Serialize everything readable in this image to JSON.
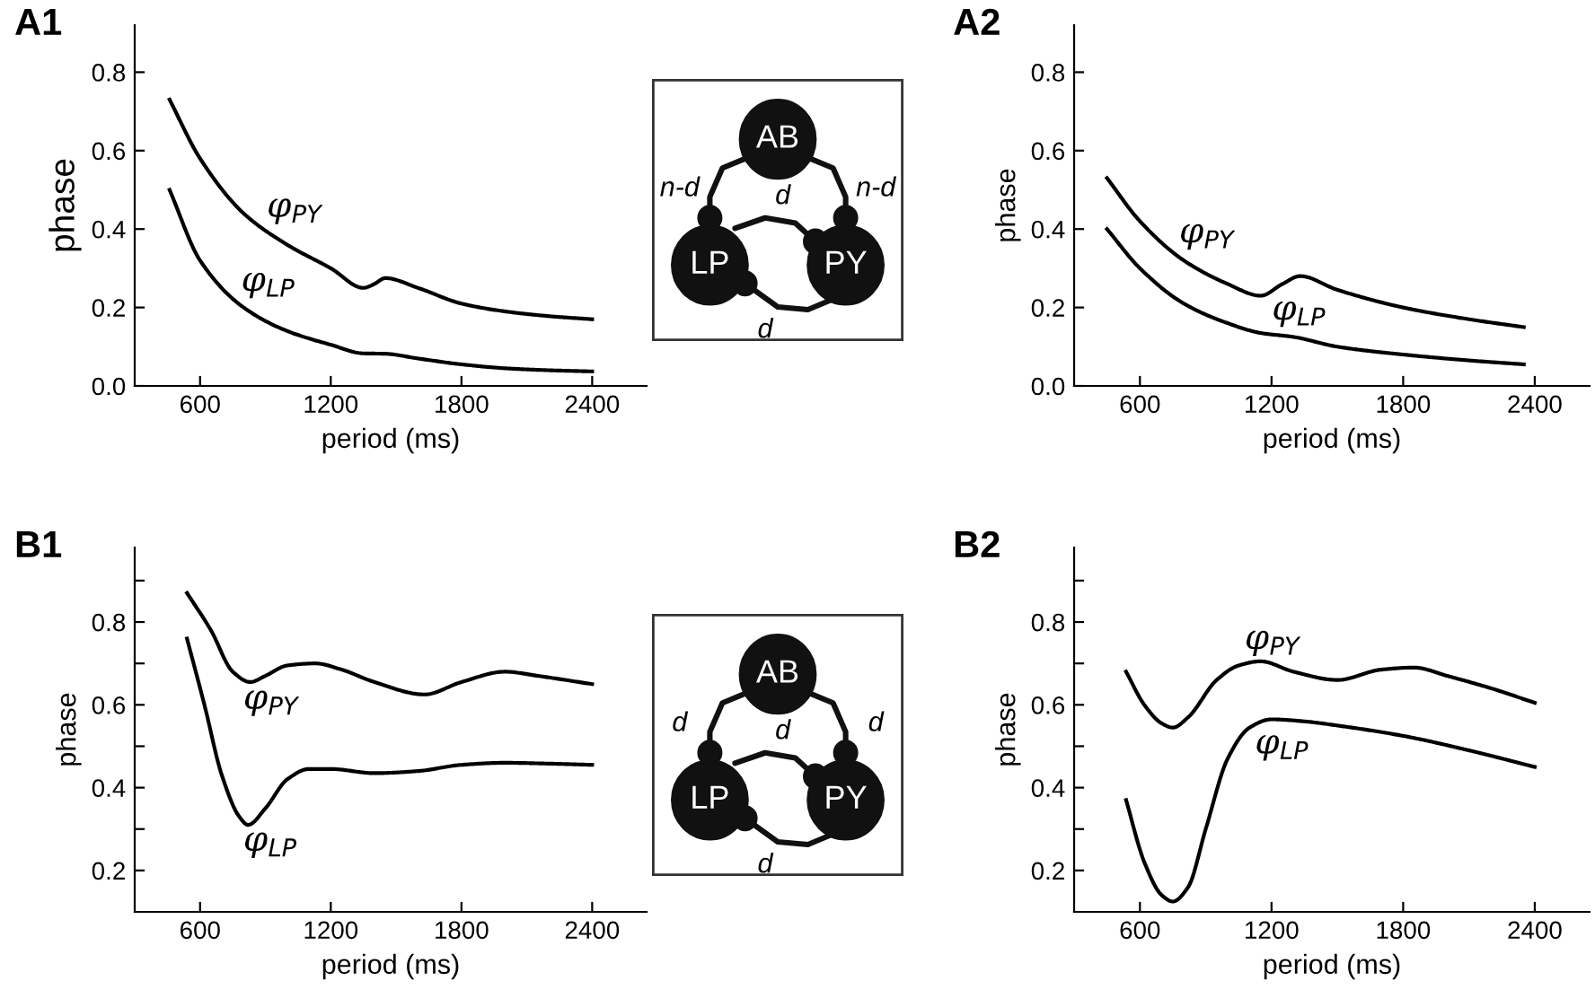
{
  "chart_data": [
    {
      "type": "line",
      "title": "A1",
      "xlabel": "period (ms)",
      "ylabel": "phase",
      "xlim": [
        300,
        2650
      ],
      "xticks": [
        600,
        1200,
        1800,
        2400
      ],
      "ylim": [
        0,
        0.92
      ],
      "yticks": [
        {
          "value": 0,
          "label": "0.0"
        },
        0.2,
        0.4,
        0.6,
        0.8
      ],
      "grid": false,
      "legend": false,
      "series": [
        {
          "name": "φ$_{PY}$",
          "color": "#000000",
          "x": [
            460,
            600,
            800,
            1000,
            1200,
            1350,
            1400,
            1450,
            1600,
            1800,
            2000,
            2200,
            2400
          ],
          "values": [
            0.73,
            0.58,
            0.44,
            0.36,
            0.3,
            0.25,
            0.26,
            0.275,
            0.25,
            0.21,
            0.19,
            0.178,
            0.17
          ]
        },
        {
          "name": "φ$_{LP}$",
          "color": "#000000",
          "x": [
            460,
            600,
            800,
            1000,
            1200,
            1350,
            1450,
            1600,
            1800,
            2000,
            2200,
            2400
          ],
          "values": [
            0.5,
            0.32,
            0.2,
            0.14,
            0.105,
            0.083,
            0.082,
            0.07,
            0.055,
            0.045,
            0.04,
            0.037
          ]
        }
      ]
    },
    {
      "type": "other",
      "annotations": [
        "AB",
        "LP",
        "PY",
        "n-d",
        "n-d",
        "d",
        "d"
      ]
    },
    {
      "type": "line",
      "title": "A2",
      "xlabel": "period (ms)",
      "ylabel": "phase",
      "xlim": [
        300,
        2650
      ],
      "xticks": [
        600,
        1200,
        1800,
        2400
      ],
      "ylim": [
        0,
        0.92
      ],
      "yticks": [
        {
          "value": 0,
          "label": "0.0"
        },
        0.2,
        0.4,
        0.6,
        0.8
      ],
      "grid": false,
      "legend": false,
      "series": [
        {
          "name": "φ$_{PY}$",
          "color": "#000000",
          "x": [
            450,
            600,
            800,
            1000,
            1150,
            1250,
            1330,
            1500,
            1800,
            2100,
            2350
          ],
          "values": [
            0.53,
            0.42,
            0.32,
            0.26,
            0.23,
            0.26,
            0.28,
            0.245,
            0.2,
            0.17,
            0.15
          ]
        },
        {
          "name": "φ$_{LP}$",
          "color": "#000000",
          "x": [
            450,
            600,
            800,
            1000,
            1150,
            1300,
            1500,
            1800,
            2100,
            2350
          ],
          "values": [
            0.4,
            0.3,
            0.21,
            0.16,
            0.135,
            0.125,
            0.1,
            0.08,
            0.065,
            0.055
          ]
        }
      ]
    },
    {
      "type": "line",
      "title": "B1",
      "xlabel": "period (ms)",
      "ylabel": "phase",
      "xlim": [
        300,
        2650
      ],
      "xticks": [
        600,
        1200,
        1800,
        2400
      ],
      "ylim": [
        0.1,
        0.98
      ],
      "yticks": [
        0.2,
        {
          "value": 0.3,
          "label": null
        },
        0.4,
        {
          "value": 0.5,
          "label": null
        },
        0.6,
        {
          "value": 0.7,
          "label": null
        },
        0.8,
        {
          "value": 0.9,
          "label": null
        }
      ],
      "grid": false,
      "legend": false,
      "series": [
        {
          "name": "φ$_{PY}$",
          "color": "#000000",
          "x": [
            540,
            650,
            750,
            830,
            900,
            1000,
            1130,
            1250,
            1400,
            1630,
            1800,
            2000,
            2150,
            2400
          ],
          "values": [
            0.87,
            0.78,
            0.68,
            0.655,
            0.67,
            0.695,
            0.7,
            0.685,
            0.655,
            0.625,
            0.655,
            0.68,
            0.67,
            0.65
          ]
        },
        {
          "name": "φ$_{LP}$",
          "color": "#000000",
          "x": [
            540,
            620,
            700,
            780,
            820,
            900,
            1000,
            1100,
            1200,
            1400,
            1600,
            1800,
            2000,
            2200,
            2400
          ],
          "values": [
            0.76,
            0.6,
            0.43,
            0.33,
            0.31,
            0.35,
            0.42,
            0.445,
            0.445,
            0.435,
            0.44,
            0.455,
            0.46,
            0.458,
            0.455
          ]
        }
      ]
    },
    {
      "type": "other",
      "annotations": [
        "AB",
        "LP",
        "PY",
        "d",
        "d",
        "d",
        "d"
      ]
    },
    {
      "type": "line",
      "title": "B2",
      "xlabel": "period (ms)",
      "ylabel": "phase",
      "xlim": [
        300,
        2650
      ],
      "xticks": [
        600,
        1200,
        1800,
        2400
      ],
      "ylim": [
        0.1,
        0.98
      ],
      "yticks": [
        0.2,
        {
          "value": 0.3,
          "label": null
        },
        0.4,
        {
          "value": 0.5,
          "label": null
        },
        0.6,
        {
          "value": 0.7,
          "label": null
        },
        0.8,
        {
          "value": 0.9,
          "label": null
        }
      ],
      "grid": false,
      "legend": false,
      "series": [
        {
          "name": "φ$_{PY}$",
          "color": "#000000",
          "x": [
            537,
            620,
            700,
            750,
            820,
            950,
            1050,
            1150,
            1300,
            1500,
            1700,
            1850,
            2000,
            2200,
            2400
          ],
          "values": [
            0.68,
            0.6,
            0.555,
            0.545,
            0.57,
            0.66,
            0.695,
            0.705,
            0.68,
            0.66,
            0.685,
            0.69,
            0.67,
            0.64,
            0.605
          ]
        },
        {
          "name": "φ$_{LP}$",
          "color": "#000000",
          "x": [
            537,
            620,
            700,
            750,
            820,
            900,
            1000,
            1100,
            1200,
            1350,
            1500,
            1800,
            2100,
            2400
          ],
          "values": [
            0.37,
            0.22,
            0.14,
            0.125,
            0.16,
            0.3,
            0.47,
            0.545,
            0.565,
            0.56,
            0.55,
            0.525,
            0.49,
            0.45
          ]
        }
      ]
    }
  ]
}
